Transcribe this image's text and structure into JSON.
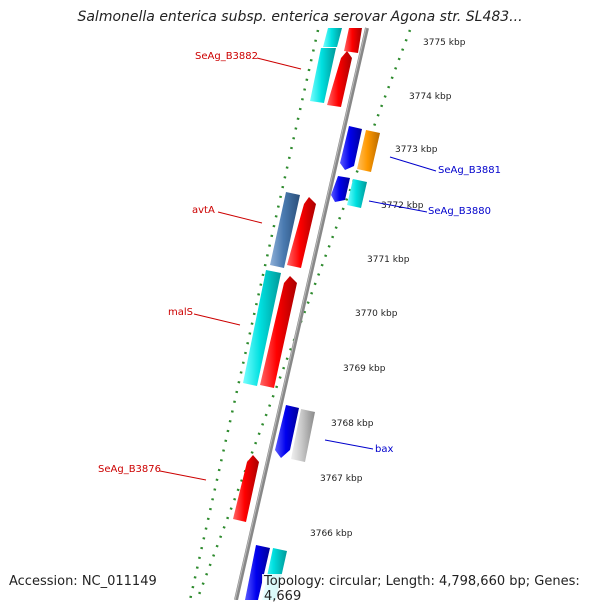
{
  "title": "Salmonella enterica subsp. enterica serovar Agona str. SL483...",
  "footer": {
    "accession": "Accession: NC_011149",
    "summary": "Topology: circular; Length: 4,798,660 bp; Genes: 4,669"
  },
  "colors": {
    "backbone": "#888888",
    "tick": "#2e8b2e",
    "label_forward": "#cc0000",
    "label_reverse": "#0000cc"
  },
  "ticks": [
    {
      "label": "3775 kbp"
    },
    {
      "label": "3774 kbp"
    },
    {
      "label": "3773 kbp"
    },
    {
      "label": "3772 kbp"
    },
    {
      "label": "3771 kbp"
    },
    {
      "label": "3770 kbp"
    },
    {
      "label": "3769 kbp"
    },
    {
      "label": "3768 kbp"
    },
    {
      "label": "3767 kbp"
    },
    {
      "label": "3766 kbp"
    }
  ],
  "gene_labels": [
    {
      "name": "SeAg_B3882",
      "color": "#cc0000"
    },
    {
      "name": "SeAg_B3881",
      "color": "#0000cc"
    },
    {
      "name": "SeAg_B3880",
      "color": "#0000cc"
    },
    {
      "name": "avtA",
      "color": "#cc0000"
    },
    {
      "name": "malS",
      "color": "#cc0000"
    },
    {
      "name": "bax",
      "color": "#0000cc"
    },
    {
      "name": "SeAg_B3876",
      "color": "#cc0000"
    }
  ]
}
